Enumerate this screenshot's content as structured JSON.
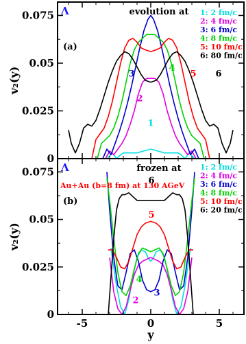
{
  "chart_data": [
    {
      "type": "line",
      "panel_label": "(a)",
      "particle": "Λ",
      "title": "evolution at",
      "subtitle": "",
      "xlabel": "",
      "ylabel": "v₂(y)",
      "xlim": [
        -6.8,
        6.8
      ],
      "ylim": [
        0,
        0.082
      ],
      "yticks": [
        0,
        0.025,
        0.05,
        0.075
      ],
      "ytick_labels": [
        "0",
        "0.025",
        "0.05",
        "0.075"
      ],
      "xticks": [
        -5,
        0,
        5
      ],
      "xtick_labels": [
        "",
        "",
        ""
      ],
      "series": [
        {
          "name": "1: 2 fm/c",
          "curve_label": "1",
          "color": "#00e0e0",
          "label_at": [
            0,
            0.017
          ],
          "x": [
            -3.2,
            -2.8,
            -2.5,
            -2.2,
            -2.0,
            -1.5,
            -1.0,
            -0.5,
            0,
            0.5,
            1.0,
            1.5,
            2.0,
            2.2,
            2.5,
            2.8,
            3.2
          ],
          "y": [
            0.0,
            0.003,
            0.0,
            0.002,
            0.003,
            0.003,
            0.003,
            0.004,
            0.005,
            0.004,
            0.003,
            0.003,
            0.003,
            0.002,
            0.0,
            0.003,
            0.0
          ]
        },
        {
          "name": "2: 4 fm/c",
          "curve_label": "2",
          "color": "#e000e0",
          "label_at": [
            -0.8,
            0.03
          ],
          "x": [
            -3.3,
            -3.0,
            -2.7,
            -2.4,
            -2.1,
            -1.8,
            -1.5,
            -1.2,
            -0.9,
            -0.6,
            -0.3,
            0,
            0.3,
            0.6,
            0.9,
            1.2,
            1.5,
            1.8,
            2.1,
            2.4,
            2.7,
            3.0,
            3.3
          ],
          "y": [
            0.0,
            0.004,
            0.002,
            0.005,
            0.008,
            0.012,
            0.018,
            0.025,
            0.034,
            0.04,
            0.042,
            0.042,
            0.042,
            0.04,
            0.034,
            0.025,
            0.018,
            0.012,
            0.008,
            0.005,
            0.002,
            0.004,
            0.0
          ]
        },
        {
          "name": "3: 6 fm/c",
          "curve_label": "3",
          "color": "#0000cc",
          "label_at": [
            -1.4,
            0.043
          ],
          "x": [
            -3.5,
            -3.2,
            -2.9,
            -2.6,
            -2.3,
            -2.0,
            -1.7,
            -1.4,
            -1.1,
            -0.8,
            -0.5,
            -0.2,
            0,
            0.2,
            0.5,
            0.8,
            1.1,
            1.4,
            1.7,
            2.0,
            2.3,
            2.6,
            2.9,
            3.2,
            3.5
          ],
          "y": [
            0.0,
            0.005,
            0.002,
            0.008,
            0.014,
            0.021,
            0.029,
            0.038,
            0.048,
            0.058,
            0.067,
            0.073,
            0.075,
            0.073,
            0.067,
            0.058,
            0.048,
            0.038,
            0.029,
            0.021,
            0.014,
            0.008,
            0.002,
            0.005,
            0.0
          ]
        },
        {
          "name": "4: 8 fm/c",
          "curve_label": "4",
          "color": "#00d000",
          "label_at": [
            1.55,
            0.046
          ],
          "x": [
            -3.9,
            -3.6,
            -3.3,
            -3.0,
            -2.7,
            -2.4,
            -2.1,
            -1.8,
            -1.5,
            -1.2,
            -0.9,
            -0.6,
            -0.3,
            0,
            0.3,
            0.6,
            0.9,
            1.2,
            1.5,
            1.8,
            2.1,
            2.4,
            2.7,
            3.0,
            3.3,
            3.6,
            3.9
          ],
          "y": [
            0.0,
            0.008,
            0.01,
            0.012,
            0.016,
            0.022,
            0.03,
            0.04,
            0.05,
            0.057,
            0.061,
            0.063,
            0.065,
            0.065,
            0.065,
            0.063,
            0.061,
            0.057,
            0.05,
            0.04,
            0.03,
            0.022,
            0.016,
            0.012,
            0.01,
            0.008,
            0.0
          ]
        },
        {
          "name": "5: 10 fm/c",
          "curve_label": "5",
          "color": "#ff0000",
          "label_at": [
            3.1,
            0.043
          ],
          "x": [
            -4.3,
            -4.0,
            -3.7,
            -3.4,
            -3.1,
            -2.8,
            -2.5,
            -2.2,
            -1.9,
            -1.6,
            -1.3,
            -1.0,
            -0.7,
            -0.4,
            0,
            0.4,
            0.7,
            1.0,
            1.3,
            1.6,
            1.9,
            2.2,
            2.5,
            2.8,
            3.1,
            3.4,
            3.7,
            4.0,
            4.3
          ],
          "y": [
            0.0,
            0.01,
            0.013,
            0.016,
            0.022,
            0.03,
            0.04,
            0.05,
            0.058,
            0.062,
            0.063,
            0.061,
            0.058,
            0.057,
            0.056,
            0.057,
            0.058,
            0.061,
            0.063,
            0.062,
            0.058,
            0.05,
            0.04,
            0.03,
            0.022,
            0.016,
            0.013,
            0.01,
            0.0
          ]
        },
        {
          "name": "6: 80 fm/c",
          "curve_label": "6",
          "color": "#000000",
          "label_at": [
            4.95,
            0.043
          ],
          "x": [
            -6.0,
            -5.8,
            -5.5,
            -5.2,
            -4.9,
            -4.6,
            -4.3,
            -4.0,
            -3.7,
            -3.4,
            -3.1,
            -2.8,
            -2.5,
            -2.2,
            -1.9,
            -1.6,
            -1.3,
            -1.0,
            -0.7,
            -0.4,
            0,
            0.4,
            0.7,
            1.0,
            1.3,
            1.6,
            1.9,
            2.2,
            2.5,
            2.8,
            3.1,
            3.4,
            3.7,
            4.0,
            4.3,
            4.6,
            4.9,
            5.2,
            5.5,
            5.8,
            6.0
          ],
          "y": [
            0.015,
            0.008,
            0.003,
            0.008,
            0.016,
            0.018,
            0.017,
            0.02,
            0.026,
            0.033,
            0.04,
            0.046,
            0.051,
            0.054,
            0.056,
            0.055,
            0.052,
            0.048,
            0.044,
            0.041,
            0.04,
            0.041,
            0.044,
            0.048,
            0.052,
            0.055,
            0.056,
            0.054,
            0.051,
            0.046,
            0.04,
            0.033,
            0.026,
            0.02,
            0.017,
            0.018,
            0.016,
            0.008,
            0.003,
            0.008,
            0.015
          ]
        }
      ]
    },
    {
      "type": "line",
      "panel_label": "(b)",
      "particle": "Λ",
      "title": "frozen at",
      "subtitle": "Au+Au (b=8 fm) at 130 AGeV",
      "xlabel": "y",
      "ylabel": "v₂(y)",
      "xlim": [
        -6.8,
        6.8
      ],
      "ylim": [
        0,
        0.082
      ],
      "yticks": [
        0,
        0.025,
        0.05,
        0.075
      ],
      "ytick_labels": [
        "0",
        "0.025",
        "0.05",
        "0.075"
      ],
      "xticks": [
        -5,
        0,
        5
      ],
      "xtick_labels": [
        "-5",
        "0",
        "5"
      ],
      "series": [
        {
          "name": "1: 2 fm/c",
          "curve_label": "",
          "color": "#00e0e0",
          "label_at": null,
          "x": [
            -2.9,
            -2.7,
            -2.5,
            -2.2,
            -1.9,
            -1.6,
            -1.3,
            -1.0,
            -0.7,
            -0.4,
            -0.2,
            0,
            0.2,
            0.4,
            0.7,
            1.0,
            1.3,
            1.6,
            1.9,
            2.2,
            2.5,
            2.7,
            2.9
          ],
          "y": [
            0.035,
            0.025,
            0.015,
            0.004,
            0.0,
            0.008,
            0.02,
            0.03,
            0.034,
            0.033,
            0.03,
            0.028,
            0.03,
            0.033,
            0.034,
            0.03,
            0.02,
            0.008,
            0.0,
            0.004,
            0.015,
            0.025,
            0.035
          ]
        },
        {
          "name": "2: 4 fm/c",
          "curve_label": "2",
          "color": "#e000e0",
          "label_at": [
            -1.1,
            0.006
          ],
          "x": [
            -3.0,
            -2.7,
            -2.4,
            -2.1,
            -1.8,
            -1.5,
            -1.2,
            -0.9,
            -0.6,
            -0.3,
            0,
            0.3,
            0.6,
            0.9,
            1.2,
            1.5,
            1.8,
            2.1,
            2.4,
            2.7,
            3.0
          ],
          "y": [
            0.03,
            0.012,
            0.003,
            0.0,
            0.004,
            0.013,
            0.021,
            0.026,
            0.028,
            0.029,
            0.03,
            0.029,
            0.028,
            0.026,
            0.021,
            0.013,
            0.004,
            0.0,
            0.003,
            0.012,
            0.03
          ]
        },
        {
          "name": "3: 6 fm/c",
          "curve_label": "3",
          "color": "#0000cc",
          "label_at": [
            0.45,
            0.01
          ],
          "x": [
            -3.2,
            -3.0,
            -2.7,
            -2.4,
            -2.1,
            -1.8,
            -1.5,
            -1.2,
            -0.9,
            -0.6,
            -0.3,
            0,
            0.3,
            0.6,
            0.9,
            1.2,
            1.5,
            1.8,
            2.1,
            2.4,
            2.7,
            3.0,
            3.2
          ],
          "y": [
            0.075,
            0.055,
            0.03,
            0.015,
            0.013,
            0.022,
            0.032,
            0.034,
            0.028,
            0.018,
            0.013,
            0.012,
            0.013,
            0.018,
            0.028,
            0.034,
            0.032,
            0.022,
            0.013,
            0.015,
            0.03,
            0.055,
            0.075
          ]
        },
        {
          "name": "4: 8 fm/c",
          "curve_label": "4",
          "color": "#00d000",
          "label_at": [
            -0.85,
            0.017
          ],
          "x": [
            -3.2,
            -3.0,
            -2.7,
            -2.4,
            -2.1,
            -1.8,
            -1.5,
            -1.2,
            -0.9,
            -0.6,
            -0.3,
            0,
            0.3,
            0.6,
            0.9,
            1.2,
            1.5,
            1.8,
            2.1,
            2.4,
            2.7,
            3.0,
            3.2
          ],
          "y": [
            0.072,
            0.06,
            0.04,
            0.022,
            0.012,
            0.01,
            0.015,
            0.024,
            0.032,
            0.035,
            0.034,
            0.033,
            0.034,
            0.035,
            0.032,
            0.024,
            0.015,
            0.01,
            0.012,
            0.022,
            0.04,
            0.06,
            0.072
          ]
        },
        {
          "name": "5: 10 fm/c",
          "curve_label": "5",
          "color": "#ff0000",
          "label_at": [
            0.05,
            0.051
          ],
          "x": [
            -3.1,
            -2.8,
            -2.5,
            -2.2,
            -1.9,
            -1.6,
            -1.3,
            -1.0,
            -0.7,
            -0.4,
            0,
            0.4,
            0.7,
            1.0,
            1.3,
            1.6,
            1.9,
            2.2,
            2.5,
            2.8,
            3.1
          ],
          "y": [
            0.034,
            0.034,
            0.03,
            0.025,
            0.024,
            0.028,
            0.035,
            0.042,
            0.046,
            0.048,
            0.049,
            0.048,
            0.046,
            0.042,
            0.035,
            0.028,
            0.024,
            0.025,
            0.03,
            0.034,
            0.034
          ]
        },
        {
          "name": "6: 20 fm/c",
          "curve_label": "6",
          "color": "#000000",
          "label_at": [
            0.05,
            0.069
          ],
          "x": [
            -3.1,
            -2.9,
            -2.7,
            -2.5,
            -2.3,
            -2.1,
            -1.9,
            -1.6,
            -1.3,
            -1.0,
            -0.7,
            -0.4,
            0,
            0.4,
            0.7,
            1.0,
            1.3,
            1.6,
            1.9,
            2.1,
            2.3,
            2.5,
            2.7,
            2.9,
            3.1
          ],
          "y": [
            0.0,
            0.02,
            0.04,
            0.055,
            0.061,
            0.063,
            0.063,
            0.064,
            0.062,
            0.06,
            0.06,
            0.06,
            0.06,
            0.06,
            0.06,
            0.06,
            0.062,
            0.064,
            0.063,
            0.063,
            0.061,
            0.055,
            0.04,
            0.02,
            0.0
          ]
        }
      ]
    }
  ]
}
